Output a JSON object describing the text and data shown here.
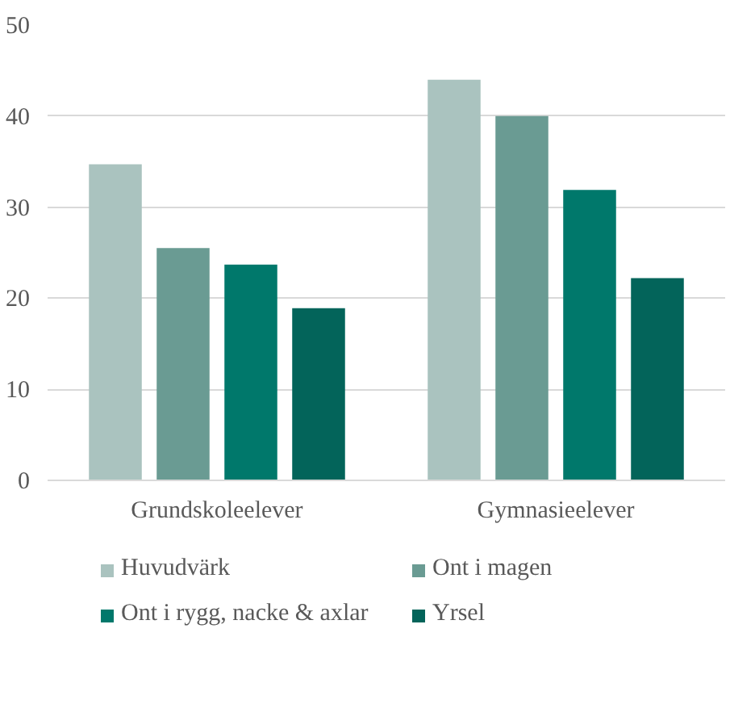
{
  "chart_data": {
    "type": "bar",
    "categories": [
      "Grundskoleelever",
      "Gymnasieelever"
    ],
    "series": [
      {
        "name": "Huvudvärk",
        "color": "#aac3bf",
        "values": [
          34.7,
          44.0
        ]
      },
      {
        "name": "Ont i magen",
        "color": "#6a9b93",
        "values": [
          25.5,
          40.0
        ]
      },
      {
        "name": "Ont i rygg, nacke & axlar",
        "color": "#00786b",
        "values": [
          23.7,
          31.9
        ]
      },
      {
        "name": "Yrsel",
        "color": "#03645a",
        "values": [
          18.9,
          22.2
        ]
      }
    ],
    "ylim": [
      0,
      50
    ],
    "yticks": [
      0,
      10,
      20,
      30,
      40,
      50
    ],
    "grid": "y",
    "legend": "bottom"
  }
}
